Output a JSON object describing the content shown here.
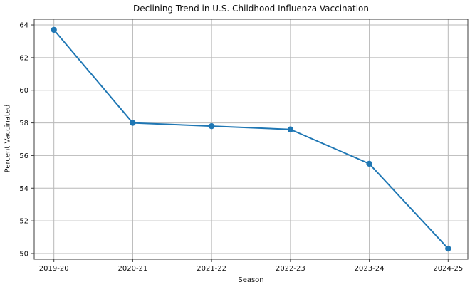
{
  "chart_data": {
    "type": "line",
    "title": "Declining Trend in U.S. Childhood Influenza Vaccination",
    "xlabel": "Season",
    "ylabel": "Percent Vaccinated",
    "categories": [
      "2019-20",
      "2020-21",
      "2021-22",
      "2022-23",
      "2023-24",
      "2024-25"
    ],
    "series": [
      {
        "name": "Percent Vaccinated",
        "values": [
          63.7,
          58.0,
          57.8,
          57.6,
          55.5,
          50.3
        ]
      }
    ],
    "yticks": [
      50,
      52,
      54,
      56,
      58,
      60,
      62,
      64
    ],
    "ylim": [
      49.65,
      64.35
    ],
    "xlim": [
      -0.25,
      5.25
    ],
    "grid": true,
    "legend_position": "none",
    "line_color": "#1f77b4",
    "marker": "circle",
    "grid_color": "#b8b8b8",
    "spine_color": "#3c3c3c",
    "background_color": "#ffffff"
  }
}
